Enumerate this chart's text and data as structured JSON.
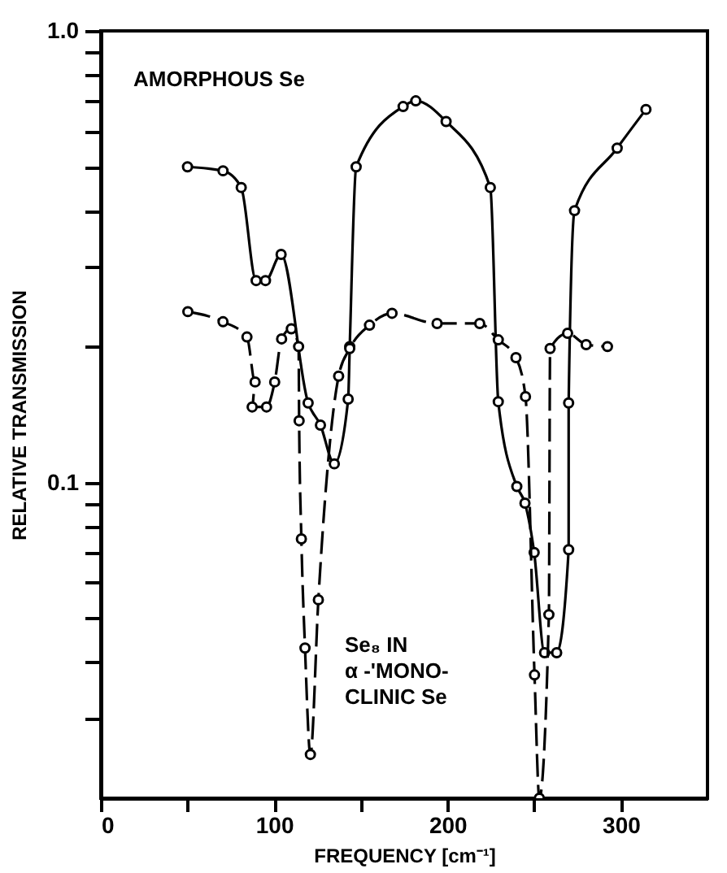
{
  "chart_data": {
    "type": "line",
    "xlabel": "FREQUENCY [cm⁻¹]",
    "ylabel": "RELATIVE TRANSMISSION",
    "log": "y",
    "xlim": [
      0,
      350
    ],
    "ylim": [
      0.02,
      1.0
    ],
    "xticks": [
      0,
      {
        "value": 50,
        "label": null
      },
      100,
      {
        "value": 150,
        "label": null
      },
      200,
      {
        "value": 250,
        "label": null
      },
      300
    ],
    "yticks": [
      {
        "value": 0.03,
        "label": null
      },
      {
        "value": 0.04,
        "label": null
      },
      {
        "value": 0.05,
        "label": null
      },
      {
        "value": 0.06,
        "label": null
      },
      {
        "value": 0.07,
        "label": null
      },
      {
        "value": 0.08,
        "label": null
      },
      {
        "value": 0.09,
        "label": null
      },
      {
        "value": 0.1,
        "label": "0.1"
      },
      {
        "value": 0.2,
        "label": null
      },
      {
        "value": 0.3,
        "label": null
      },
      {
        "value": 0.4,
        "label": null
      },
      {
        "value": 0.5,
        "label": null
      },
      {
        "value": 0.6,
        "label": null
      },
      {
        "value": 0.7,
        "label": null
      },
      {
        "value": 0.8,
        "label": null
      },
      {
        "value": 0.9,
        "label": null
      },
      {
        "value": 1.0,
        "label": "1.0"
      }
    ],
    "grid": false,
    "marker": "circle",
    "series": [
      {
        "color": "#000000",
        "line_style": "solid",
        "x": [
          50,
          70.5,
          81,
          89.6,
          95,
          104,
          119.6,
          126.7,
          134.7,
          142.7,
          143.6,
          147.3,
          174.4,
          181.7,
          199.2,
          224.7,
          229.3,
          240,
          244.7,
          250,
          256,
          263,
          269.9,
          269.9,
          273.3,
          297.9,
          314.5
        ],
        "values": [
          0.5,
          0.49,
          0.45,
          0.28,
          0.28,
          0.32,
          0.15,
          0.134,
          0.11,
          0.153,
          0.2,
          0.5,
          0.68,
          0.7,
          0.63,
          0.45,
          0.151,
          0.098,
          0.09,
          0.07,
          0.042,
          0.042,
          0.071,
          0.15,
          0.4,
          0.55,
          0.67
        ]
      },
      {
        "color": "#000000",
        "line_style": "dashed",
        "x": [
          50.2,
          70.5,
          84.3,
          89,
          87.3,
          95.6,
          100.3,
          104.3,
          109.9,
          114.1,
          114.4,
          115.7,
          117.8,
          120.9,
          125.5,
          137.2,
          143.6,
          155,
          168,
          194,
          218.6,
          229.3,
          239.5,
          245,
          250.2,
          253,
          258.5,
          259.2,
          269.3,
          280,
          292.3
        ],
        "values": [
          0.239,
          0.227,
          0.21,
          0.167,
          0.147,
          0.147,
          0.167,
          0.208,
          0.219,
          0.2,
          0.137,
          0.075,
          0.043,
          0.025,
          0.055,
          0.172,
          0.198,
          0.223,
          0.237,
          0.225,
          0.225,
          0.207,
          0.189,
          0.155,
          0.0375,
          0.02,
          0.051,
          0.198,
          0.214,
          0.202,
          0.2
        ]
      }
    ],
    "annotations": [
      "AMORPHOUS Se",
      "Se₈ IN\nα -'MONO-\nCLINIC Se"
    ]
  }
}
